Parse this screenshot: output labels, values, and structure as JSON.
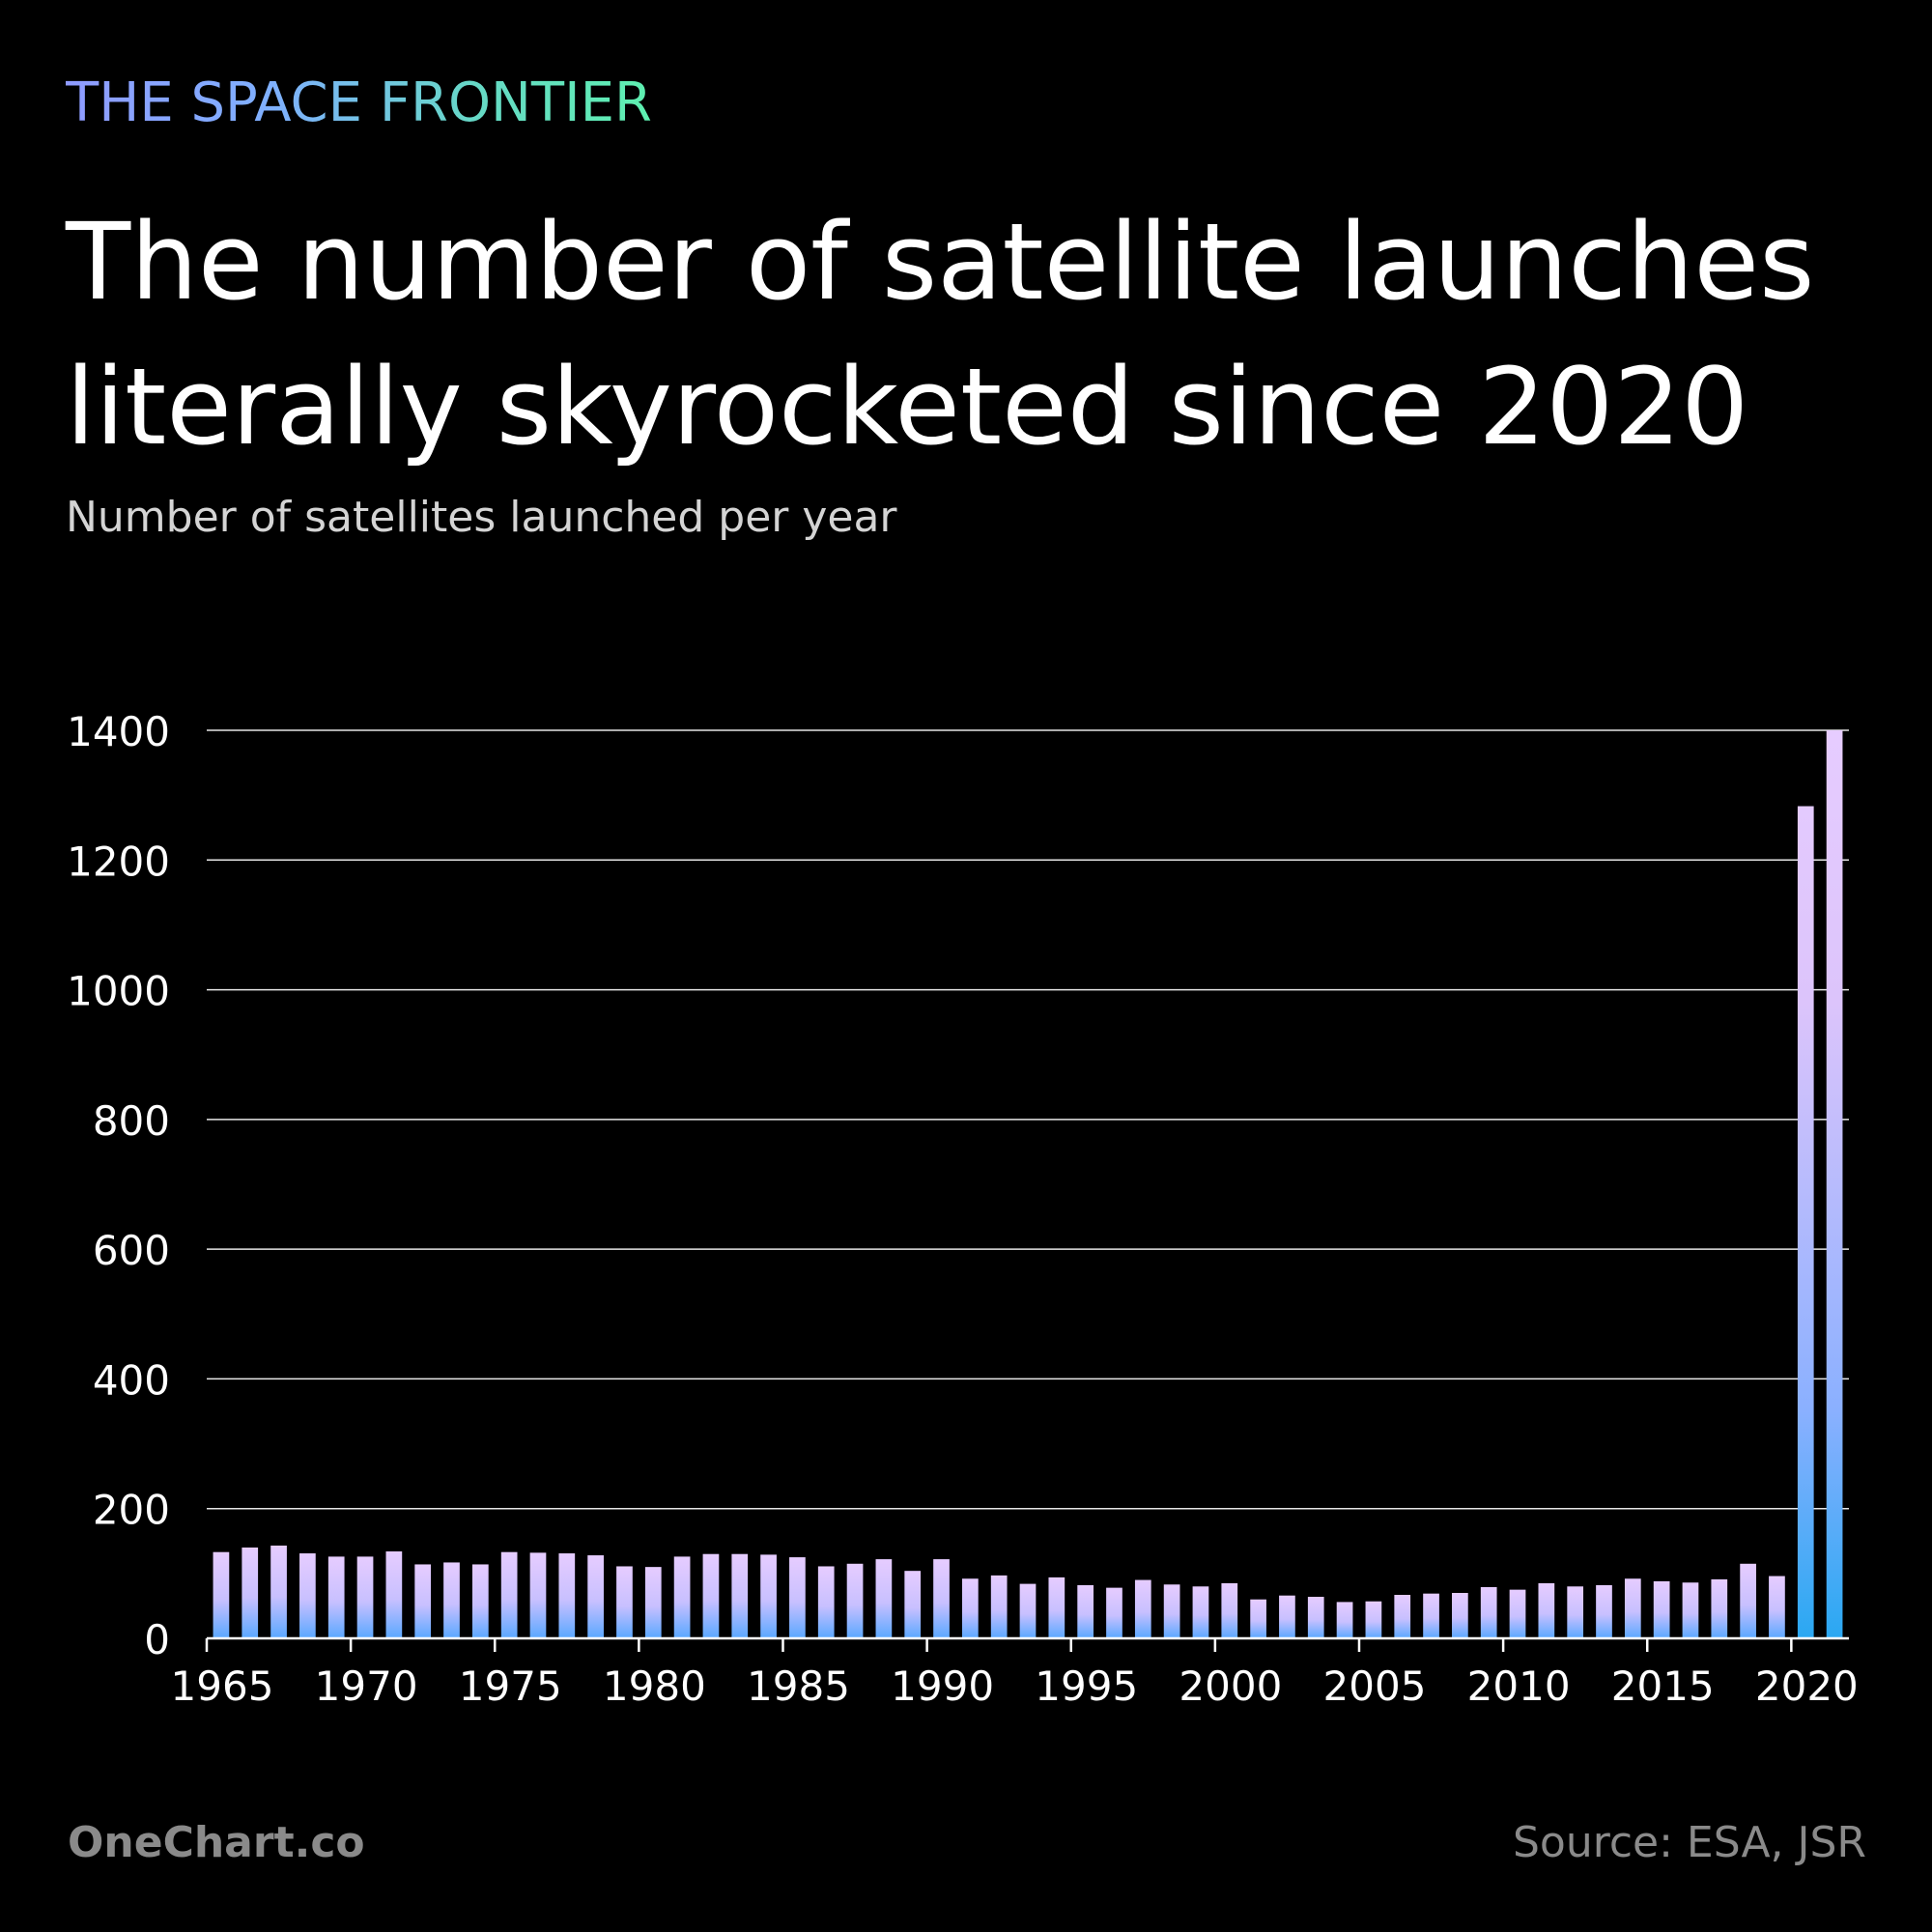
{
  "header": {
    "kicker": "THE SPACE FRONTIER",
    "title": "The number of satellite launches literally skyrocketed since 2020",
    "subtitle": "Number of satellites launched per year"
  },
  "footer": {
    "brand": "OneChart.co",
    "source": "Source: ESA, JSR"
  },
  "colors": {
    "background": "#000000",
    "bar_top": "#e6ccff",
    "bar_bottom": "#2aa8f2",
    "grid": "#ffffff"
  },
  "chart_data": {
    "type": "bar",
    "title": "The number of satellite launches literally skyrocketed since 2020",
    "subtitle": "Number of satellites launched per year",
    "xlabel": "",
    "ylabel": "",
    "ylim": [
      0,
      1400
    ],
    "yticks": [
      0,
      200,
      400,
      600,
      800,
      1000,
      1200,
      1400
    ],
    "xticks": [
      1965,
      1970,
      1975,
      1980,
      1985,
      1990,
      1995,
      2000,
      2005,
      2010,
      2015,
      2020
    ],
    "grid": true,
    "x": [
      1965,
      1966,
      1967,
      1968,
      1969,
      1970,
      1971,
      1972,
      1973,
      1974,
      1975,
      1976,
      1977,
      1978,
      1979,
      1980,
      1981,
      1982,
      1983,
      1984,
      1985,
      1986,
      1987,
      1988,
      1989,
      1990,
      1991,
      1992,
      1993,
      1994,
      1995,
      1996,
      1997,
      1998,
      1999,
      2000,
      2001,
      2002,
      2003,
      2004,
      2005,
      2006,
      2007,
      2008,
      2009,
      2010,
      2011,
      2012,
      2013,
      2014,
      2015,
      2016,
      2017,
      2018,
      2019,
      2020,
      2021
    ],
    "values": [
      133,
      140,
      143,
      131,
      126,
      126,
      134,
      114,
      117,
      114,
      133,
      132,
      131,
      128,
      111,
      110,
      126,
      130,
      130,
      129,
      125,
      111,
      115,
      122,
      104,
      122,
      92,
      97,
      84,
      94,
      82,
      78,
      90,
      83,
      80,
      85,
      60,
      66,
      64,
      56,
      57,
      67,
      69,
      70,
      79,
      75,
      85,
      80,
      82,
      92,
      88,
      86,
      91,
      115,
      96,
      1283,
      1400
    ]
  }
}
